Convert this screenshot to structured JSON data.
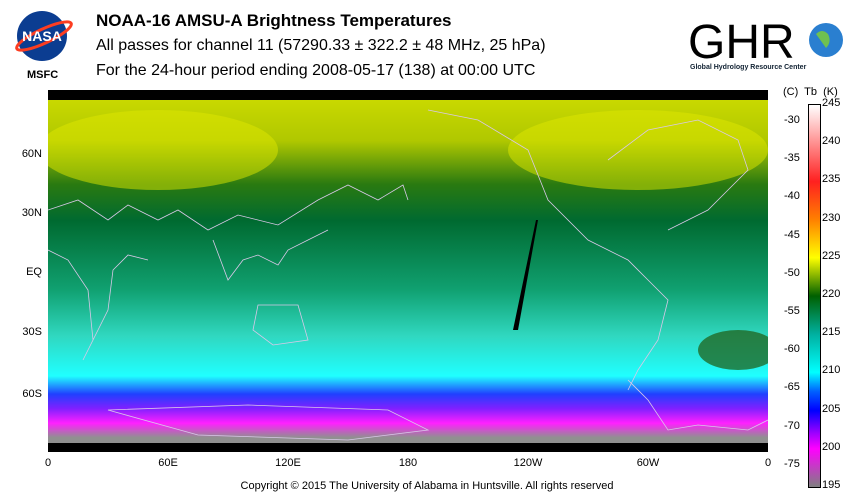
{
  "header": {
    "title": "NOAA-16 AMSU-A Brightness Temperatures",
    "subtitle": "All passes for channel 11 (57290.33 ± 322.2 ± 48 MHz, 25 hPa)",
    "period": "For the 24-hour period ending 2008-05-17 (138) at 00:00 UTC"
  },
  "logos": {
    "left": "NASA",
    "left_caption": "MSFC",
    "right": "GHRC",
    "right_caption": "Global Hydrology Resource Center"
  },
  "map": {
    "lat_labels": [
      "60N",
      "30N",
      "EQ",
      "30S",
      "60S"
    ],
    "lon_labels": [
      "0",
      "60E",
      "120E",
      "180",
      "120W",
      "60W",
      "0"
    ]
  },
  "colorbar": {
    "header": "(C)  Tb  (K)",
    "kelvin": [
      "245",
      "240",
      "235",
      "230",
      "225",
      "220",
      "215",
      "210",
      "205",
      "200",
      "195"
    ],
    "celsius": [
      "-30",
      "-35",
      "-40",
      "-45",
      "-50",
      "-55",
      "-60",
      "-65",
      "-70",
      "-75"
    ],
    "colors": [
      "#ffffff",
      "#ff2020",
      "#ff8000",
      "#ffff00",
      "#006000",
      "#00b0a0",
      "#00ffff",
      "#0000ff",
      "#ff00ff",
      "#808080"
    ]
  },
  "footer": {
    "copyright": "Copyright © 2015 The University of Alabama in Huntsville.  All rights reserved"
  }
}
